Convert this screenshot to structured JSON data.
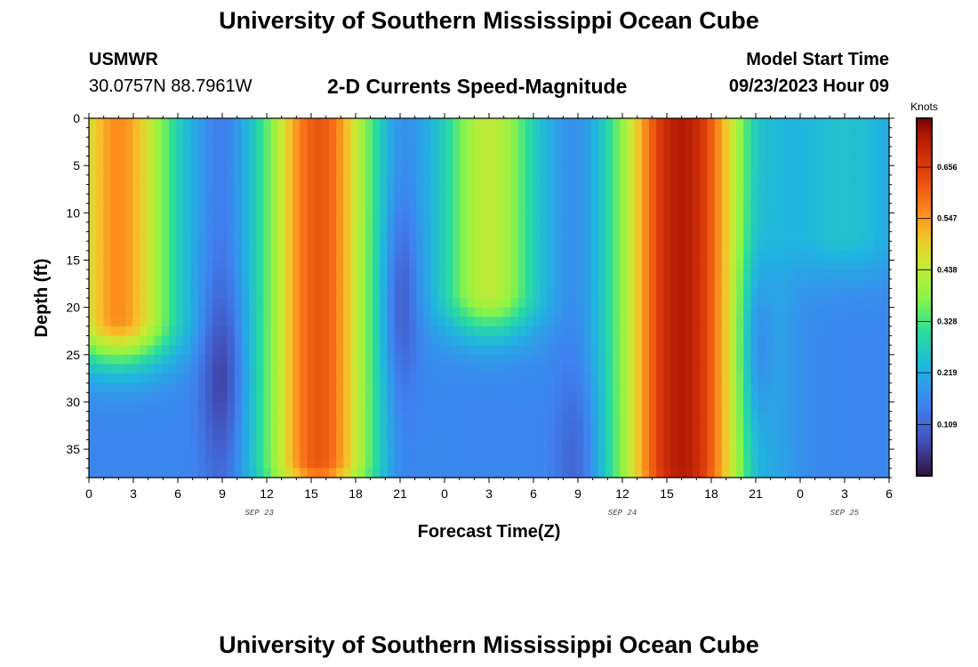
{
  "header": {
    "title_top": "University of Southern Mississippi Ocean Cube",
    "station_id": "USMWR",
    "station_coords": "30.0757N  88.7961W",
    "chart_title": "2-D Currents Speed-Magnitude",
    "model_start_label": "Model Start Time",
    "model_start_value": "09/23/2023 Hour 09",
    "title_bottom": "University of Southern Mississippi Ocean Cube"
  },
  "chart_data": {
    "type": "heatmap",
    "title": "2-D Currents Speed-Magnitude",
    "xlabel": "Forecast Time(Z)",
    "ylabel": "Depth (ft)",
    "x_range_hours": [
      0,
      54
    ],
    "x_tick_labels": [
      "0",
      "3",
      "6",
      "9",
      "12",
      "15",
      "18",
      "21",
      "0",
      "3",
      "6",
      "9",
      "12",
      "15",
      "18",
      "21",
      "0",
      "3",
      "6"
    ],
    "date_labels": [
      {
        "text": "SEP 23",
        "hour": 11.5
      },
      {
        "text": "SEP 24",
        "hour": 36
      },
      {
        "text": "SEP 25",
        "hour": 51
      }
    ],
    "ylim": [
      0,
      38
    ],
    "y_ticks": [
      0,
      5,
      10,
      15,
      20,
      25,
      30,
      35
    ],
    "colorbar": {
      "unit": "Knots",
      "ticks": [
        "0.109",
        "0.219",
        "0.328",
        "0.438",
        "0.547",
        "0.656"
      ],
      "tick_values": [
        0.109,
        0.219,
        0.328,
        0.438,
        0.547,
        0.656
      ],
      "vmin": 0.0,
      "vmax": 0.76
    },
    "speed_features_knots": [
      {
        "hour_center": 2.0,
        "hour_width": 2.6,
        "peak": 0.56,
        "depth_extent_ft": 21
      },
      {
        "hour_center": 9.0,
        "hour_width": 1.0,
        "trough": 0.04,
        "deepest_depth_ft": 27
      },
      {
        "hour_center": 15.5,
        "hour_width": 2.6,
        "peak": 0.62,
        "depth_extent_ft": 36
      },
      {
        "hour_center": 21.0,
        "hour_width": 0.9,
        "trough": 0.05,
        "deepest_depth_ft": 19
      },
      {
        "hour_center": 27.0,
        "hour_width": 2.3,
        "peak": 0.44,
        "depth_extent_ft": 18
      },
      {
        "hour_center": 33.0,
        "hour_width": 1.1,
        "trough": 0.08,
        "deepest_depth_ft": 36
      },
      {
        "hour_center": 40.0,
        "hour_width": 3.0,
        "peak": 0.72,
        "depth_extent_ft": 37
      },
      {
        "hour_center": 45.0,
        "hour_width": 0.8,
        "trough": 0.05,
        "deepest_depth_ft": 24
      },
      {
        "hour_center": 51.0,
        "hour_width": 3.0,
        "peak": 0.25,
        "depth_extent_ft": 12
      }
    ]
  }
}
